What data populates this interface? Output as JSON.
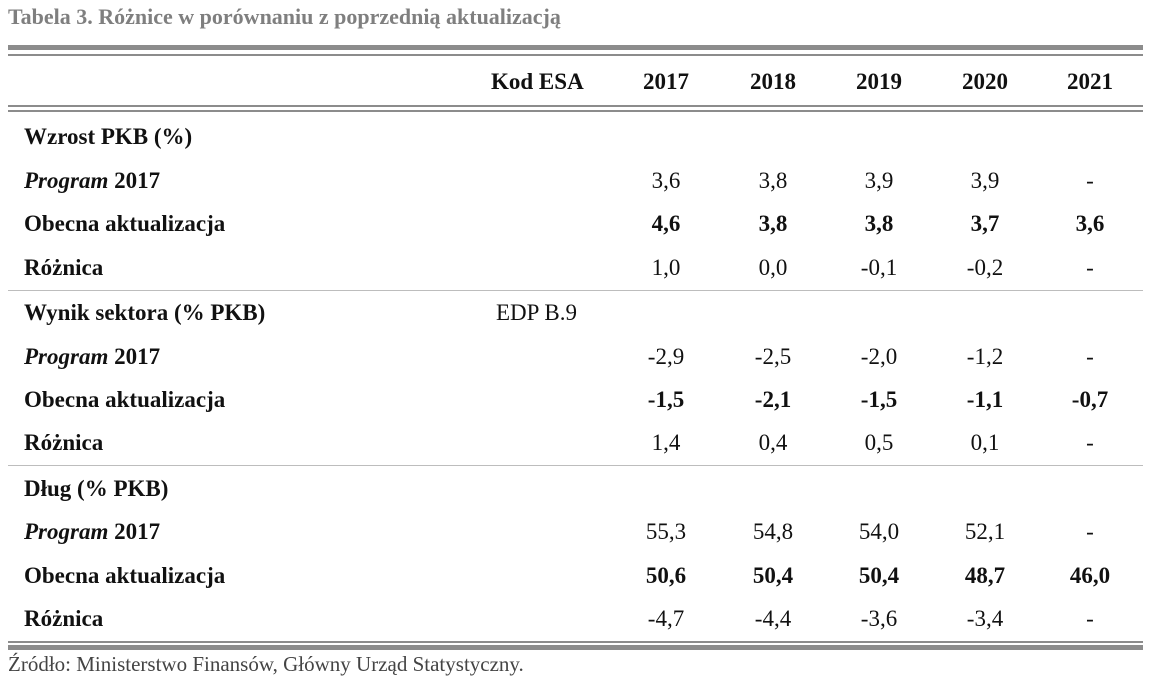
{
  "title": "Tabela 3. Różnice w porównaniu z poprzednią aktualizacją",
  "header": {
    "code_label": "Kod ESA",
    "years": [
      "2017",
      "2018",
      "2019",
      "2020",
      "2021"
    ]
  },
  "sections": [
    {
      "title": "Wzrost PKB (%)",
      "code": "",
      "rows": [
        {
          "label_em": "Program",
          "label_rest": " 2017",
          "values": [
            "3,6",
            "3,8",
            "3,9",
            "3,9",
            "-"
          ]
        },
        {
          "label": "Obecna aktualizacja",
          "values": [
            "4,6",
            "3,8",
            "3,8",
            "3,7",
            "3,6"
          ]
        },
        {
          "label": "Różnica",
          "values": [
            "1,0",
            "0,0",
            "-0,1",
            "-0,2",
            "-"
          ]
        }
      ]
    },
    {
      "title": "Wynik sektora (% PKB)",
      "code": "EDP B.9",
      "rows": [
        {
          "label_em": "Program",
          "label_rest": " 2017",
          "values": [
            "-2,9",
            "-2,5",
            "-2,0",
            "-1,2",
            "-"
          ]
        },
        {
          "label": "Obecna aktualizacja",
          "values": [
            "-1,5",
            "-2,1",
            "-1,5",
            "-1,1",
            "-0,7"
          ]
        },
        {
          "label": "Różnica",
          "values": [
            "1,4",
            "0,4",
            "0,5",
            "0,1",
            "-"
          ]
        }
      ]
    },
    {
      "title": "Dług (% PKB)",
      "code": "",
      "rows": [
        {
          "label_em": "Program",
          "label_rest": " 2017",
          "values": [
            "55,3",
            "54,8",
            "54,0",
            "52,1",
            "-"
          ]
        },
        {
          "label": "Obecna aktualizacja",
          "values": [
            "50,6",
            "50,4",
            "50,4",
            "48,7",
            "46,0"
          ]
        },
        {
          "label": "Różnica",
          "values": [
            "-4,7",
            "-4,4",
            "-3,6",
            "-3,4",
            "-"
          ]
        }
      ]
    }
  ],
  "source": "Źródło: Ministerstwo Finansów, Główny Urząd Statystyczny."
}
